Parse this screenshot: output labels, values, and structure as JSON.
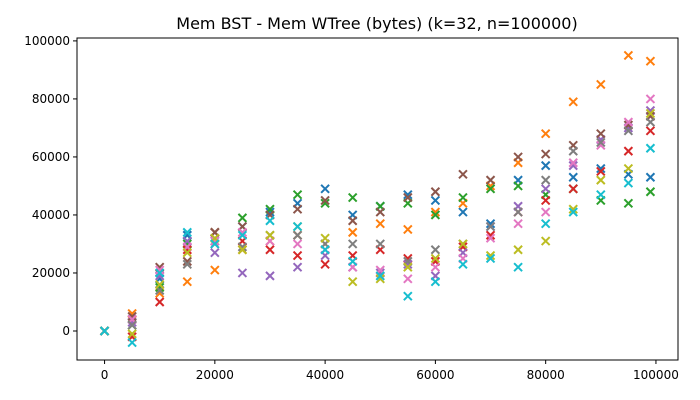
{
  "chart_data": {
    "type": "scatter",
    "title": "Mem BST - Mem WTree (bytes) (k=32, n=100000)",
    "xlabel": "",
    "ylabel": "",
    "xlim": [
      -5000,
      104000
    ],
    "ylim": [
      -10000,
      101000
    ],
    "xticks": [
      0,
      20000,
      40000,
      60000,
      80000,
      100000
    ],
    "yticks": [
      0,
      20000,
      40000,
      60000,
      80000,
      100000
    ],
    "xtick_labels": [
      "0",
      "20000",
      "40000",
      "60000",
      "80000",
      "100000"
    ],
    "ytick_labels": [
      "0",
      "20000",
      "40000",
      "60000",
      "80000",
      "100000"
    ],
    "marker": "x",
    "grid": false,
    "legend": false,
    "series": [
      {
        "color": "#1f77b4",
        "x": [
          0,
          5000,
          10000,
          15000,
          20000,
          25000,
          30000,
          35000,
          40000,
          45000,
          50000,
          55000,
          60000,
          65000,
          70000,
          75000,
          80000,
          85000,
          90000,
          95000,
          99000
        ],
        "values": [
          0,
          4000,
          18000,
          33000,
          31000,
          36000,
          41000,
          44000,
          49000,
          40000,
          43000,
          47000,
          45000,
          41000,
          37000,
          52000,
          57000,
          53000,
          56000,
          54000,
          53000
        ]
      },
      {
        "color": "#ff7f0e",
        "x": [
          0,
          5000,
          10000,
          15000,
          20000,
          25000,
          30000,
          35000,
          40000,
          45000,
          50000,
          55000,
          60000,
          65000,
          70000,
          75000,
          80000,
          85000,
          90000,
          95000,
          99000
        ],
        "values": [
          0,
          6000,
          13000,
          17000,
          21000,
          28000,
          31000,
          33000,
          30000,
          34000,
          37000,
          35000,
          41000,
          44000,
          50000,
          58000,
          68000,
          79000,
          85000,
          95000,
          93000
        ]
      },
      {
        "color": "#2ca02c",
        "x": [
          0,
          5000,
          10000,
          15000,
          20000,
          25000,
          30000,
          35000,
          40000,
          45000,
          50000,
          55000,
          60000,
          65000,
          70000,
          75000,
          80000,
          85000,
          90000,
          95000,
          99000
        ],
        "values": [
          0,
          2000,
          15000,
          30000,
          34000,
          39000,
          42000,
          47000,
          44000,
          46000,
          43000,
          44000,
          40000,
          46000,
          49000,
          50000,
          47000,
          49000,
          45000,
          44000,
          48000
        ]
      },
      {
        "color": "#d62728",
        "x": [
          0,
          5000,
          10000,
          15000,
          20000,
          25000,
          30000,
          35000,
          40000,
          45000,
          50000,
          55000,
          60000,
          65000,
          70000,
          75000,
          80000,
          85000,
          90000,
          95000,
          99000
        ],
        "values": [
          0,
          -2000,
          10000,
          28000,
          34000,
          31000,
          28000,
          26000,
          23000,
          26000,
          28000,
          25000,
          24000,
          29000,
          33000,
          41000,
          45000,
          49000,
          55000,
          62000,
          69000
        ]
      },
      {
        "color": "#9467bd",
        "x": [
          0,
          5000,
          10000,
          15000,
          20000,
          25000,
          30000,
          35000,
          40000,
          45000,
          50000,
          55000,
          60000,
          65000,
          70000,
          75000,
          80000,
          85000,
          90000,
          95000,
          99000
        ],
        "values": [
          0,
          3000,
          19000,
          31000,
          27000,
          20000,
          19000,
          22000,
          26000,
          22000,
          20000,
          23000,
          19000,
          27000,
          36000,
          43000,
          49000,
          57000,
          66000,
          70000,
          76000
        ]
      },
      {
        "color": "#8c564b",
        "x": [
          0,
          5000,
          10000,
          15000,
          20000,
          25000,
          30000,
          35000,
          40000,
          45000,
          50000,
          55000,
          60000,
          65000,
          70000,
          75000,
          80000,
          85000,
          90000,
          95000,
          99000
        ],
        "values": [
          0,
          5000,
          22000,
          24000,
          34000,
          36000,
          40000,
          42000,
          45000,
          38000,
          41000,
          46000,
          48000,
          54000,
          52000,
          60000,
          61000,
          64000,
          68000,
          71000,
          74000
        ]
      },
      {
        "color": "#e377c2",
        "x": [
          0,
          5000,
          10000,
          15000,
          20000,
          25000,
          30000,
          35000,
          40000,
          45000,
          50000,
          55000,
          60000,
          65000,
          70000,
          75000,
          80000,
          85000,
          90000,
          95000,
          99000
        ],
        "values": [
          0,
          4000,
          21000,
          29000,
          31000,
          34000,
          31000,
          30000,
          28000,
          22000,
          21000,
          18000,
          22000,
          25000,
          32000,
          37000,
          41000,
          58000,
          64000,
          72000,
          80000
        ]
      },
      {
        "color": "#7f7f7f",
        "x": [
          0,
          5000,
          10000,
          15000,
          20000,
          25000,
          30000,
          35000,
          40000,
          45000,
          50000,
          55000,
          60000,
          65000,
          70000,
          75000,
          80000,
          85000,
          90000,
          95000,
          99000
        ],
        "values": [
          0,
          2000,
          14000,
          23000,
          30000,
          29000,
          33000,
          33000,
          30000,
          30000,
          30000,
          24000,
          28000,
          30000,
          36000,
          41000,
          52000,
          62000,
          65000,
          69000,
          72000
        ]
      },
      {
        "color": "#bcbd22",
        "x": [
          0,
          5000,
          10000,
          15000,
          20000,
          25000,
          30000,
          35000,
          40000,
          45000,
          50000,
          55000,
          60000,
          65000,
          70000,
          75000,
          80000,
          85000,
          90000,
          95000,
          99000
        ],
        "values": [
          0,
          -1000,
          16000,
          27000,
          32000,
          28000,
          33000,
          36000,
          32000,
          17000,
          18000,
          22000,
          25000,
          30000,
          26000,
          28000,
          31000,
          42000,
          52000,
          56000,
          75000
        ]
      },
      {
        "color": "#17becf",
        "x": [
          0,
          5000,
          10000,
          15000,
          20000,
          25000,
          30000,
          35000,
          40000,
          45000,
          50000,
          55000,
          60000,
          65000,
          70000,
          75000,
          80000,
          85000,
          90000,
          95000,
          99000
        ],
        "values": [
          0,
          -4000,
          20000,
          34000,
          30000,
          33000,
          38000,
          36000,
          28000,
          24000,
          19000,
          12000,
          17000,
          23000,
          25000,
          22000,
          37000,
          41000,
          47000,
          51000,
          63000
        ]
      }
    ]
  }
}
